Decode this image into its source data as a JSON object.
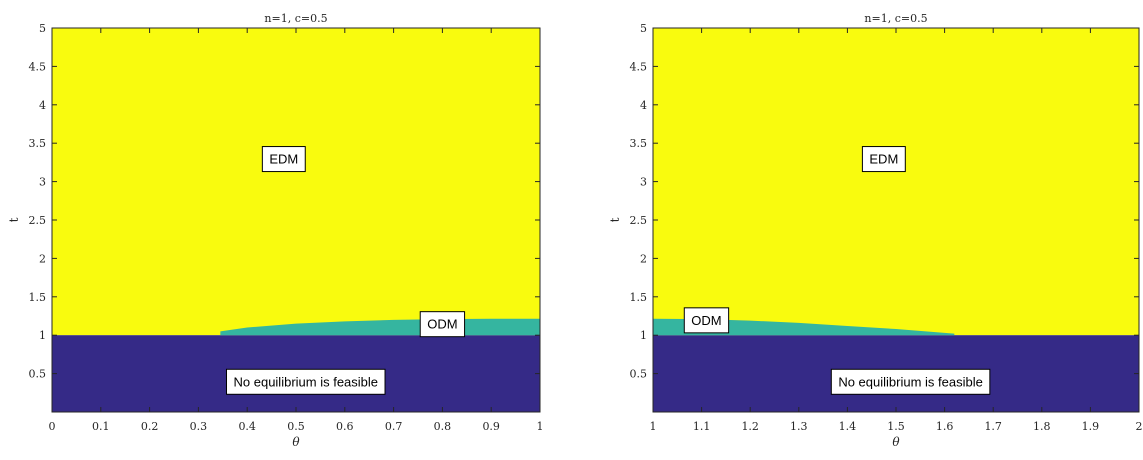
{
  "chart_data": [
    {
      "type": "heatmap",
      "title": "n=1, c=0.5",
      "xlabel": "θ",
      "ylabel": "t",
      "xlim": [
        0,
        1
      ],
      "ylim": [
        0,
        5
      ],
      "xticks": [
        "0",
        "0.1",
        "0.2",
        "0.3",
        "0.4",
        "0.5",
        "0.6",
        "0.7",
        "0.8",
        "0.9",
        "1"
      ],
      "yticks": [
        "0.5",
        "1",
        "1.5",
        "2",
        "2.5",
        "3",
        "3.5",
        "4",
        "4.5",
        "5"
      ],
      "regions": [
        {
          "name": "No equilibrium is feasible",
          "color": "#352a87",
          "t_range": [
            0,
            1
          ]
        },
        {
          "name": "ODM",
          "color": "#35b5a0",
          "lower_t": 1.0,
          "upper_boundary": {
            "theta": [
              0.345,
              0.4,
              0.5,
              0.6,
              0.7,
              0.8,
              0.9,
              1.0
            ],
            "t": [
              1.05,
              1.1,
              1.15,
              1.18,
              1.2,
              1.21,
              1.215,
              1.215
            ]
          }
        },
        {
          "name": "EDM",
          "color": "#f9fb0e",
          "t_range": [
            1,
            5
          ]
        }
      ],
      "annotations": [
        {
          "text": "EDM",
          "x": 0.475,
          "y": 3.3
        },
        {
          "text": "ODM",
          "x": 0.8,
          "y": 1.15
        },
        {
          "text": "No equilibrium is feasible",
          "x": 0.52,
          "y": 0.4
        }
      ]
    },
    {
      "type": "heatmap",
      "title": "n=1, c=0.5",
      "xlabel": "θ",
      "ylabel": "t",
      "xlim": [
        1,
        2
      ],
      "ylim": [
        0,
        5
      ],
      "xticks": [
        "1",
        "1.1",
        "1.2",
        "1.3",
        "1.4",
        "1.5",
        "1.6",
        "1.7",
        "1.8",
        "1.9",
        "2"
      ],
      "yticks": [
        "0.5",
        "1",
        "1.5",
        "2",
        "2.5",
        "3",
        "3.5",
        "4",
        "4.5",
        "5"
      ],
      "regions": [
        {
          "name": "No equilibrium is feasible",
          "color": "#352a87",
          "t_range": [
            0,
            1
          ]
        },
        {
          "name": "ODM",
          "color": "#35b5a0",
          "lower_t": 1.0,
          "upper_boundary": {
            "theta": [
              1.0,
              1.1,
              1.2,
              1.3,
              1.4,
              1.5,
              1.6,
              1.62
            ],
            "t": [
              1.215,
              1.21,
              1.19,
              1.16,
              1.12,
              1.08,
              1.03,
              1.02
            ]
          }
        },
        {
          "name": "EDM",
          "color": "#f9fb0e",
          "t_range": [
            1,
            5
          ]
        }
      ],
      "annotations": [
        {
          "text": "EDM",
          "x": 1.475,
          "y": 3.3
        },
        {
          "text": "ODM",
          "x": 1.11,
          "y": 1.2
        },
        {
          "text": "No equilibrium is feasible",
          "x": 1.53,
          "y": 0.4
        }
      ]
    }
  ]
}
